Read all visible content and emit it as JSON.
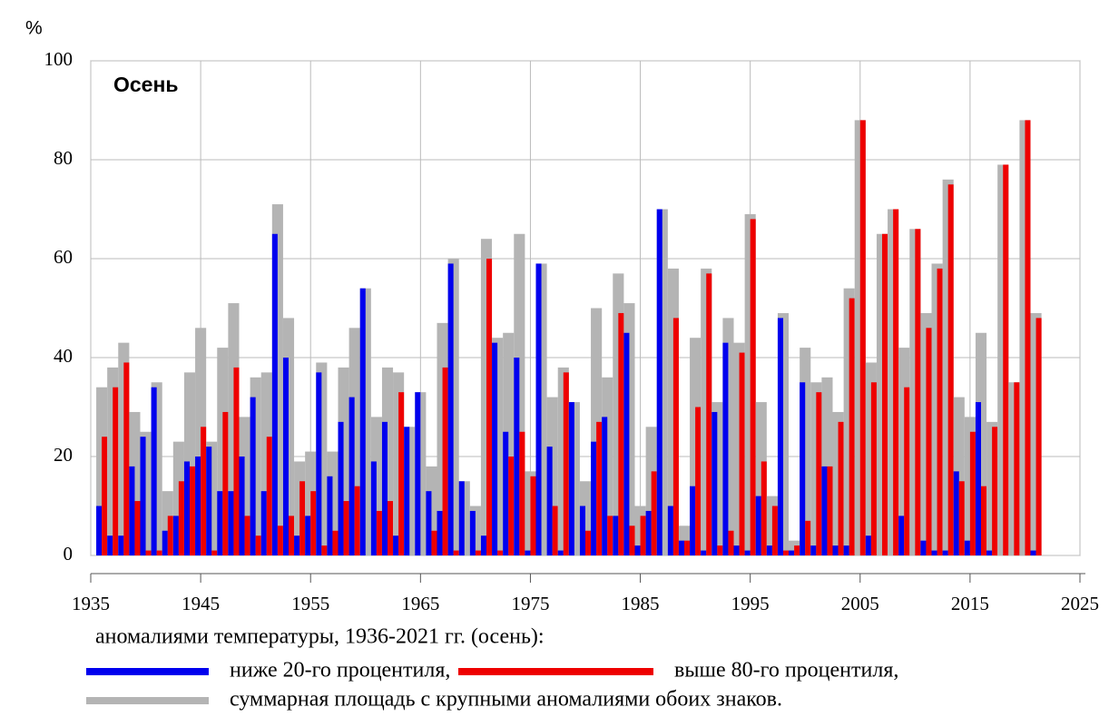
{
  "chart_data": {
    "type": "bar",
    "title": "Осень",
    "y_label": "%",
    "caption": "аномалиями температуры, 1936-2021 гг. (осень):",
    "x": [
      1936,
      1937,
      1938,
      1939,
      1940,
      1941,
      1942,
      1943,
      1944,
      1945,
      1946,
      1947,
      1948,
      1949,
      1950,
      1951,
      1952,
      1953,
      1954,
      1955,
      1956,
      1957,
      1958,
      1959,
      1960,
      1961,
      1962,
      1963,
      1964,
      1965,
      1966,
      1967,
      1968,
      1969,
      1970,
      1971,
      1972,
      1973,
      1974,
      1975,
      1976,
      1977,
      1978,
      1979,
      1980,
      1981,
      1982,
      1983,
      1984,
      1985,
      1986,
      1987,
      1988,
      1989,
      1990,
      1991,
      1992,
      1993,
      1994,
      1995,
      1996,
      1997,
      1998,
      1999,
      2000,
      2001,
      2002,
      2003,
      2004,
      2005,
      2006,
      2007,
      2008,
      2009,
      2010,
      2011,
      2012,
      2013,
      2014,
      2015,
      2016,
      2017,
      2018,
      2019,
      2020,
      2021
    ],
    "series": [
      {
        "name": "суммарная площадь с крупными аномалиями обоих знаков.",
        "color": "#b4b4b4",
        "values": [
          34,
          38,
          43,
          29,
          25,
          35,
          13,
          23,
          37,
          46,
          23,
          42,
          51,
          28,
          36,
          37,
          71,
          48,
          19,
          21,
          39,
          21,
          38,
          46,
          54,
          28,
          38,
          37,
          26,
          33,
          18,
          47,
          60,
          15,
          10,
          64,
          44,
          45,
          65,
          17,
          59,
          32,
          38,
          31,
          15,
          50,
          36,
          57,
          51,
          10,
          26,
          70,
          58,
          6,
          44,
          58,
          31,
          48,
          43,
          69,
          31,
          12,
          49,
          3,
          42,
          35,
          36,
          29,
          54,
          88,
          39,
          65,
          70,
          42,
          66,
          49,
          59,
          76,
          32,
          28,
          45,
          27,
          79,
          35,
          88,
          49
        ]
      },
      {
        "name": "ниже 20-го процентиля,",
        "color": "#0000ee",
        "values": [
          10,
          4,
          4,
          18,
          24,
          34,
          5,
          8,
          19,
          20,
          22,
          13,
          13,
          20,
          32,
          13,
          65,
          40,
          4,
          8,
          37,
          16,
          27,
          32,
          54,
          19,
          27,
          4,
          26,
          33,
          13,
          9,
          59,
          15,
          9,
          4,
          43,
          25,
          40,
          1,
          59,
          22,
          1,
          31,
          10,
          23,
          28,
          8,
          45,
          2,
          9,
          70,
          10,
          3,
          14,
          1,
          29,
          43,
          2,
          1,
          12,
          2,
          48,
          1,
          35,
          2,
          18,
          2,
          2,
          0,
          4,
          0,
          0,
          8,
          0,
          3,
          1,
          1,
          17,
          3,
          31,
          1,
          0,
          0,
          0,
          1
        ]
      },
      {
        "name": "выше 80-го процентиля,",
        "color": "#ee0000",
        "values": [
          24,
          34,
          39,
          11,
          1,
          1,
          8,
          15,
          18,
          26,
          1,
          29,
          38,
          8,
          4,
          24,
          6,
          8,
          15,
          13,
          2,
          5,
          11,
          14,
          0,
          9,
          11,
          33,
          0,
          0,
          5,
          38,
          1,
          0,
          1,
          60,
          1,
          20,
          25,
          16,
          0,
          10,
          37,
          0,
          5,
          27,
          8,
          49,
          6,
          8,
          17,
          0,
          48,
          3,
          30,
          57,
          2,
          5,
          41,
          68,
          19,
          10,
          1,
          2,
          7,
          33,
          18,
          27,
          52,
          88,
          35,
          65,
          70,
          34,
          66,
          46,
          58,
          75,
          15,
          25,
          14,
          26,
          79,
          35,
          88,
          48
        ]
      }
    ],
    "xlim": [
      1935,
      2025
    ],
    "xticks": [
      1935,
      1945,
      1955,
      1965,
      1975,
      1985,
      1995,
      2005,
      2015,
      2025
    ],
    "ylim": [
      0,
      100
    ],
    "yticks": [
      0,
      20,
      40,
      60,
      80,
      100
    ],
    "grid": true
  }
}
